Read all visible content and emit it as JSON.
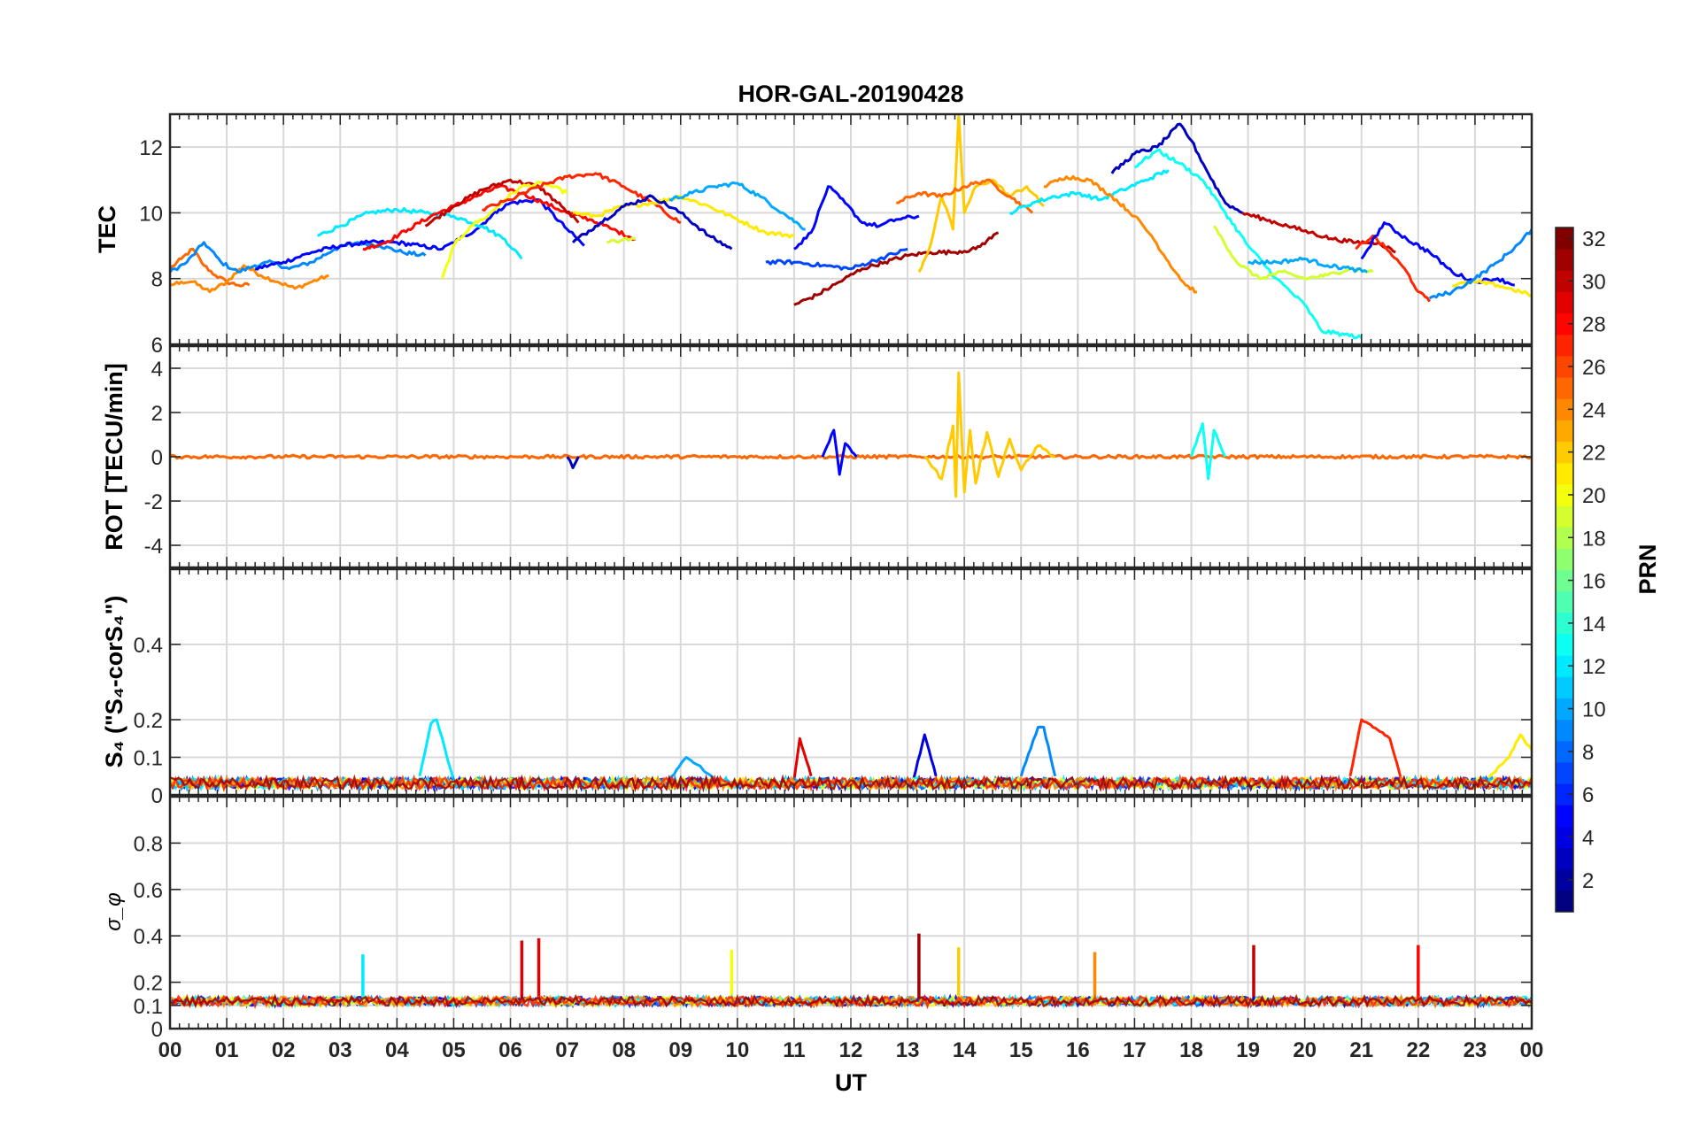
{
  "chart_data": {
    "type": "line",
    "title": "HOR-GAL-20190428",
    "xlabel": "UT",
    "x_ticks": [
      "00",
      "01",
      "02",
      "03",
      "04",
      "05",
      "06",
      "07",
      "08",
      "09",
      "10",
      "11",
      "12",
      "13",
      "14",
      "15",
      "16",
      "17",
      "18",
      "19",
      "20",
      "21",
      "22",
      "23",
      "00"
    ],
    "xlim_hours": [
      0,
      24
    ],
    "grid": true,
    "colormap": "jet",
    "colorbar": {
      "label": "PRN",
      "range": [
        1,
        32
      ],
      "ticks": [
        "2",
        "4",
        "6",
        "8",
        "10",
        "12",
        "14",
        "16",
        "18",
        "20",
        "22",
        "24",
        "26",
        "28",
        "30",
        "32"
      ],
      "placement": "right"
    },
    "panels": [
      {
        "id": "tec",
        "ylabel": "TEC",
        "ylim": [
          6,
          13
        ],
        "y_ticks": [
          "6",
          "8",
          "10",
          "12"
        ],
        "series": [
          {
            "prn": 25,
            "x": [
              0.0,
              0.2,
              0.4,
              0.6,
              0.8,
              1.0,
              1.2,
              1.4
            ],
            "y": [
              8.3,
              8.6,
              8.9,
              8.4,
              8.1,
              7.9,
              7.8,
              7.8
            ]
          },
          {
            "prn": 24,
            "x": [
              0.0,
              0.2,
              0.4,
              0.7,
              1.0,
              1.3,
              1.6,
              1.9,
              2.2,
              2.5,
              2.8
            ],
            "y": [
              7.8,
              7.9,
              7.9,
              7.6,
              7.9,
              8.4,
              8.1,
              7.9,
              7.7,
              7.9,
              8.1
            ]
          },
          {
            "prn": 9,
            "x": [
              0.0,
              0.3,
              0.6,
              0.9,
              1.2,
              1.5,
              1.8,
              2.1,
              2.5,
              2.9,
              3.3,
              3.7,
              4.1,
              4.5
            ],
            "y": [
              8.2,
              8.5,
              9.1,
              8.5,
              8.2,
              8.4,
              8.5,
              8.3,
              8.5,
              8.9,
              9.1,
              9.0,
              8.8,
              8.7
            ]
          },
          {
            "prn": 5,
            "x": [
              1.5,
              2.0,
              2.5,
              3.0,
              3.5,
              4.0,
              4.4,
              4.8,
              5.1,
              5.4,
              5.6,
              5.8,
              6.0,
              6.5,
              7.0,
              7.3
            ],
            "y": [
              8.3,
              8.5,
              8.8,
              9.0,
              9.1,
              9.1,
              9.0,
              8.9,
              9.2,
              9.5,
              9.8,
              10.1,
              10.3,
              10.4,
              9.5,
              9.0
            ]
          },
          {
            "prn": 12,
            "x": [
              2.6,
              3.0,
              3.5,
              4.0,
              4.5,
              5.0,
              5.5,
              5.9,
              6.2
            ],
            "y": [
              9.3,
              9.6,
              10.0,
              10.1,
              10.0,
              9.9,
              9.6,
              9.2,
              8.6
            ]
          },
          {
            "prn": 28,
            "x": [
              3.4,
              3.8,
              4.2,
              4.6,
              5.0,
              5.4,
              5.8,
              6.2,
              6.6,
              7.0,
              7.4,
              7.8,
              8.2
            ],
            "y": [
              8.9,
              9.1,
              9.5,
              9.9,
              10.2,
              10.5,
              10.8,
              10.6,
              10.3,
              10.0,
              9.8,
              9.5,
              9.2
            ]
          },
          {
            "prn": 30,
            "x": [
              4.5,
              5.0,
              5.5,
              6.0,
              6.5,
              6.9,
              7.2
            ],
            "y": [
              9.6,
              10.2,
              10.7,
              11.0,
              10.8,
              10.2,
              9.7
            ]
          },
          {
            "prn": 20,
            "x": [
              4.8,
              5.0,
              5.3,
              5.6,
              5.9,
              6.2,
              6.6,
              7.0
            ],
            "y": [
              8.0,
              9.0,
              9.6,
              9.9,
              10.4,
              10.8,
              10.9,
              10.6
            ]
          },
          {
            "prn": 27,
            "x": [
              5.5,
              6.0,
              6.5,
              7.0,
              7.5,
              8.0,
              8.5,
              9.0
            ],
            "y": [
              10.1,
              10.4,
              10.8,
              11.1,
              11.2,
              10.8,
              10.3,
              9.7
            ]
          },
          {
            "prn": 21,
            "x": [
              7.1,
              7.5,
              8.0,
              8.5,
              9.0,
              9.5,
              10.0,
              10.5,
              11.0
            ],
            "y": [
              10.0,
              9.9,
              10.2,
              10.3,
              10.5,
              10.2,
              9.8,
              9.4,
              9.3
            ]
          },
          {
            "prn": 19,
            "x": [
              7.7,
              8.0,
              8.2
            ],
            "y": [
              9.1,
              9.2,
              9.2
            ]
          },
          {
            "prn": 3,
            "x": [
              7.1,
              7.5,
              8.0,
              8.5,
              9.0,
              9.5,
              9.9
            ],
            "y": [
              9.1,
              9.6,
              10.2,
              10.5,
              10.0,
              9.3,
              8.9
            ]
          },
          {
            "prn": 10,
            "x": [
              8.8,
              9.2,
              9.6,
              10.0,
              10.4,
              10.8,
              11.2
            ],
            "y": [
              10.4,
              10.6,
              10.8,
              10.9,
              10.5,
              10.0,
              9.5
            ]
          },
          {
            "prn": 5,
            "x": [
              11.0,
              11.3,
              11.6,
              11.9,
              12.2,
              12.5,
              12.8,
              13.2
            ],
            "y": [
              8.9,
              9.4,
              10.8,
              10.3,
              9.7,
              9.6,
              9.8,
              9.9
            ]
          },
          {
            "prn": 7,
            "x": [
              10.5,
              11.0,
              11.5,
              12.0,
              12.5,
              13.0
            ],
            "y": [
              8.5,
              8.5,
              8.4,
              8.3,
              8.6,
              8.9
            ]
          },
          {
            "prn": 31,
            "x": [
              11.0,
              11.4,
              11.8,
              12.2,
              12.6,
              13.0,
              13.4,
              13.8,
              14.2,
              14.6
            ],
            "y": [
              7.2,
              7.5,
              7.9,
              8.3,
              8.5,
              8.7,
              8.8,
              8.8,
              8.9,
              9.4
            ]
          },
          {
            "prn": 22,
            "x": [
              13.2,
              13.4,
              13.6,
              13.8,
              13.9,
              14.0,
              14.2,
              14.5,
              14.8,
              15.1,
              15.4
            ],
            "y": [
              8.2,
              9.0,
              10.5,
              9.5,
              13.0,
              10.0,
              10.8,
              11.0,
              10.5,
              10.8,
              10.2
            ]
          },
          {
            "prn": 25,
            "x": [
              12.8,
              13.2,
              13.6,
              14.0,
              14.4,
              14.8,
              15.2
            ],
            "y": [
              10.3,
              10.6,
              10.5,
              10.8,
              11.0,
              10.5,
              10.0
            ]
          },
          {
            "prn": 12,
            "x": [
              14.8,
              15.2,
              15.6,
              16.0,
              16.4,
              16.8,
              17.2,
              17.6
            ],
            "y": [
              10.0,
              10.3,
              10.5,
              10.6,
              10.4,
              10.7,
              11.0,
              11.3
            ]
          },
          {
            "prn": 24,
            "x": [
              15.4,
              15.8,
              16.2,
              16.6,
              17.0,
              17.3,
              17.6,
              17.9,
              18.1
            ],
            "y": [
              10.8,
              11.1,
              11.0,
              10.5,
              9.9,
              9.3,
              8.5,
              7.8,
              7.6
            ]
          },
          {
            "prn": 3,
            "x": [
              16.6,
              17.0,
              17.4,
              17.8,
              18.0,
              18.3,
              18.6,
              18.9
            ],
            "y": [
              11.2,
              11.8,
              12.0,
              12.7,
              12.2,
              11.2,
              10.3,
              10.0
            ]
          },
          {
            "prn": 13,
            "x": [
              17.0,
              17.4,
              17.8,
              18.2,
              18.6,
              19.0,
              19.5,
              20.0,
              20.3,
              20.7,
              21.0
            ],
            "y": [
              11.4,
              11.9,
              11.5,
              11.0,
              10.0,
              9.0,
              8.0,
              7.2,
              6.4,
              6.3,
              6.2
            ]
          },
          {
            "prn": 19,
            "x": [
              18.4,
              18.8,
              19.2,
              19.6,
              20.0,
              20.4,
              20.8,
              21.2
            ],
            "y": [
              9.6,
              8.5,
              8.0,
              8.2,
              8.0,
              8.1,
              8.3,
              8.2
            ]
          },
          {
            "prn": 30,
            "x": [
              18.9,
              19.3,
              19.7,
              20.1,
              20.5,
              20.9,
              21.3,
              21.6
            ],
            "y": [
              10.0,
              9.8,
              9.6,
              9.4,
              9.2,
              9.1,
              9.1,
              8.8
            ]
          },
          {
            "prn": 10,
            "x": [
              19.0,
              19.5,
              20.0,
              20.4,
              20.8,
              21.1
            ],
            "y": [
              8.5,
              8.5,
              8.6,
              8.4,
              8.3,
              8.2
            ]
          },
          {
            "prn": 27,
            "x": [
              20.9,
              21.2,
              21.5,
              21.8,
              22.0,
              22.2
            ],
            "y": [
              8.9,
              9.3,
              8.8,
              8.2,
              7.6,
              7.3
            ]
          },
          {
            "prn": 5,
            "x": [
              21.0,
              21.4,
              21.8,
              22.2,
              22.6,
              23.0,
              23.4,
              23.7
            ],
            "y": [
              8.6,
              9.7,
              9.2,
              8.8,
              8.2,
              7.9,
              8.0,
              7.8
            ]
          },
          {
            "prn": 21,
            "x": [
              22.6,
              23.0,
              23.4,
              23.8,
              24.0
            ],
            "y": [
              7.8,
              7.9,
              7.8,
              7.6,
              7.5
            ]
          },
          {
            "prn": 9,
            "x": [
              22.2,
              22.6,
              23.0,
              23.4,
              23.8,
              24.0
            ],
            "y": [
              7.4,
              7.6,
              8.0,
              8.5,
              9.1,
              9.5
            ]
          }
        ]
      },
      {
        "id": "rot",
        "ylabel": "ROT [TECU/min]",
        "ylim": [
          -5,
          5
        ],
        "y_ticks": [
          "-4",
          "-2",
          "0",
          "2",
          "4"
        ],
        "series": [
          {
            "prn": 25,
            "x": [
              0,
              24
            ],
            "y": [
              0,
              0
            ]
          },
          {
            "prn": 22,
            "x": [
              13.3,
              13.6,
              13.8,
              13.85,
              13.9,
              14.0,
              14.1,
              14.2,
              14.4,
              14.6,
              14.8,
              15.0,
              15.3,
              15.6
            ],
            "y": [
              0,
              -1.0,
              1.4,
              -1.8,
              3.8,
              -1.6,
              1.2,
              -1.2,
              1.1,
              -0.9,
              0.8,
              -0.6,
              0.5,
              0
            ]
          },
          {
            "prn": 5,
            "x": [
              11.5,
              11.7,
              11.8,
              11.9,
              12.1
            ],
            "y": [
              0,
              1.2,
              -0.8,
              0.6,
              0
            ]
          },
          {
            "prn": 13,
            "x": [
              18.0,
              18.2,
              18.3,
              18.4,
              18.6
            ],
            "y": [
              0,
              1.5,
              -1.0,
              1.2,
              0
            ]
          },
          {
            "prn": 3,
            "x": [
              7.0,
              7.1,
              7.2
            ],
            "y": [
              0,
              -0.5,
              0
            ]
          }
        ]
      },
      {
        "id": "s4",
        "ylabel": "S₄ (\"S₄-corS₄\")",
        "ylim": [
          0,
          0.6
        ],
        "y_ticks": [
          "0",
          "0.1",
          "0.2",
          "0.4"
        ],
        "series": [
          {
            "prn": 12,
            "x": [
              4.4,
              4.6,
              4.7,
              4.8,
              4.9,
              5.0
            ],
            "y": [
              0.05,
              0.19,
              0.2,
              0.15,
              0.09,
              0.04
            ]
          },
          {
            "prn": 10,
            "x": [
              8.8,
              9.1,
              9.3,
              9.6
            ],
            "y": [
              0.04,
              0.1,
              0.08,
              0.04
            ]
          },
          {
            "prn": 29,
            "x": [
              11.0,
              11.1,
              11.3
            ],
            "y": [
              0.04,
              0.15,
              0.05
            ]
          },
          {
            "prn": 4,
            "x": [
              13.1,
              13.3,
              13.5
            ],
            "y": [
              0.04,
              0.16,
              0.05
            ]
          },
          {
            "prn": 9,
            "x": [
              15.0,
              15.3,
              15.4,
              15.6
            ],
            "y": [
              0.05,
              0.18,
              0.18,
              0.05
            ]
          },
          {
            "prn": 27,
            "x": [
              20.8,
              21.0,
              21.2,
              21.5,
              21.7
            ],
            "y": [
              0.05,
              0.2,
              0.18,
              0.15,
              0.04
            ]
          },
          {
            "prn": 21,
            "x": [
              23.2,
              23.6,
              23.8,
              24.0
            ],
            "y": [
              0.04,
              0.1,
              0.16,
              0.12
            ]
          }
        ]
      },
      {
        "id": "sigma",
        "ylabel": "σ_φ",
        "ylim": [
          0,
          1
        ],
        "y_ticks": [
          "0",
          "0.1",
          "0.2",
          "0.4",
          "0.6",
          "0.8"
        ],
        "series": [
          {
            "prn": 29,
            "x": [
              6.2,
              6.5
            ],
            "y": [
              0.38,
              0.39
            ]
          },
          {
            "prn": 31,
            "x": [
              13.2
            ],
            "y": [
              0.41
            ]
          },
          {
            "prn": 22,
            "x": [
              13.9
            ],
            "y": [
              0.35
            ]
          },
          {
            "prn": 20,
            "x": [
              9.9
            ],
            "y": [
              0.34
            ]
          },
          {
            "prn": 12,
            "x": [
              3.4
            ],
            "y": [
              0.32
            ]
          },
          {
            "prn": 24,
            "x": [
              16.3
            ],
            "y": [
              0.33
            ]
          },
          {
            "prn": 30,
            "x": [
              19.1
            ],
            "y": [
              0.36
            ]
          },
          {
            "prn": 28,
            "x": [
              22.0
            ],
            "y": [
              0.36
            ]
          }
        ]
      }
    ]
  }
}
